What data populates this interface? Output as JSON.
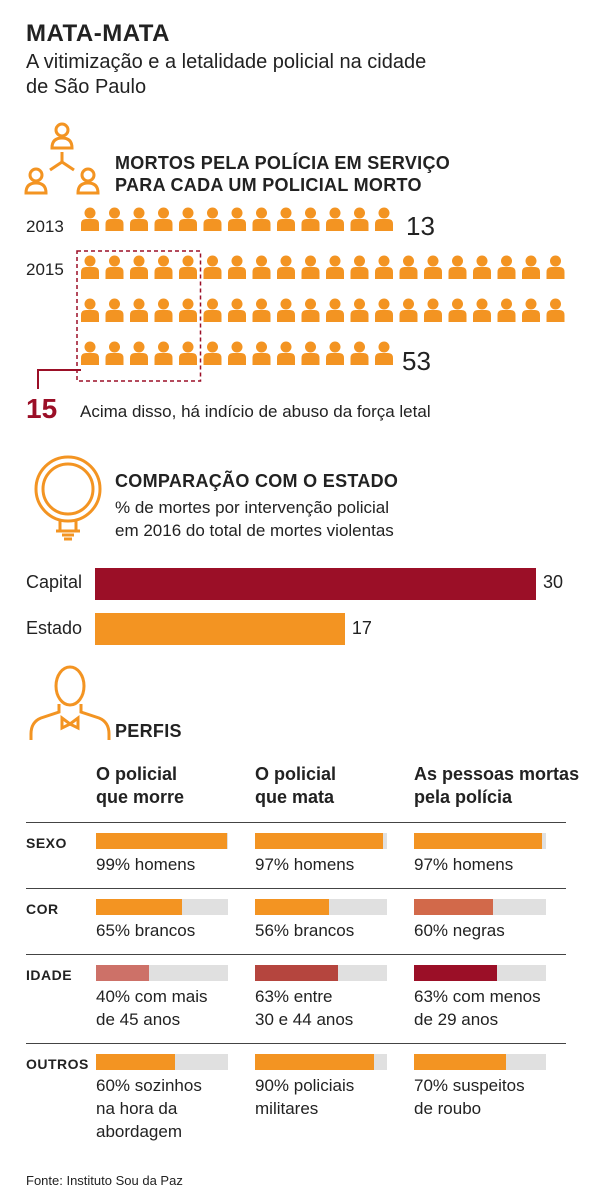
{
  "header": {
    "title": "MATA-MATA",
    "subtitle": "A vitimização e a letalidade policial na cidade de São Paulo"
  },
  "colors": {
    "orange": "#f39422",
    "darkred": "#9b0f27",
    "midred": "#b5453e",
    "lightred": "#cd7168",
    "rust": "#d2694a",
    "grey": "#e0e0e0"
  },
  "section1": {
    "title_line1": "MORTOS PELA POLÍCIA EM SERVIÇO",
    "title_line2": "PARA CADA UM POLICIAL MORTO",
    "rows": [
      {
        "year": "2013",
        "count": 13,
        "count_label": "13"
      },
      {
        "year": "2015",
        "count": 53,
        "count_label": "53"
      }
    ],
    "threshold_value": "15",
    "threshold_text": "Acima disso, há indício de abuso da força letal"
  },
  "section2": {
    "title": "COMPARAÇÃO COM O ESTADO",
    "subtitle_line1": "% de mortes por intervenção policial",
    "subtitle_line2": "em 2016 do total de mortes violentas"
  },
  "section3": {
    "title": "PERFIS",
    "columns": [
      {
        "line1": "O policial",
        "line2": "que morre"
      },
      {
        "line1": "O policial",
        "line2": "que mata"
      },
      {
        "line1": "As pessoas mortas",
        "line2": "pela polícia"
      }
    ],
    "rows": [
      {
        "label": "SEXO",
        "cells": [
          {
            "pct": 99,
            "color": "#f39422",
            "line1": "99% homens",
            "line2": ""
          },
          {
            "pct": 97,
            "color": "#f39422",
            "line1": "97% homens",
            "line2": ""
          },
          {
            "pct": 97,
            "color": "#f39422",
            "line1": "97% homens",
            "line2": ""
          }
        ]
      },
      {
        "label": "COR",
        "cells": [
          {
            "pct": 65,
            "color": "#f39422",
            "line1": "65% brancos",
            "line2": ""
          },
          {
            "pct": 56,
            "color": "#f39422",
            "line1": "56% brancos",
            "line2": ""
          },
          {
            "pct": 60,
            "color": "#d2694a",
            "line1": "60% negras",
            "line2": ""
          }
        ]
      },
      {
        "label": "IDADE",
        "cells": [
          {
            "pct": 40,
            "color": "#cd7168",
            "line1": "40% com mais",
            "line2": "de 45 anos"
          },
          {
            "pct": 63,
            "color": "#b5453e",
            "line1": "63% entre",
            "line2": "30 e 44 anos"
          },
          {
            "pct": 63,
            "color": "#9b0f27",
            "line1": "63% com menos",
            "line2": "de 29 anos"
          }
        ]
      },
      {
        "label": "OUTROS",
        "cells": [
          {
            "pct": 60,
            "color": "#f39422",
            "line1": "60% sozinhos",
            "line2": "na hora da",
            "line3": "abordagem"
          },
          {
            "pct": 90,
            "color": "#f39422",
            "line1": "90% policiais",
            "line2": "militares",
            "line3": ""
          },
          {
            "pct": 70,
            "color": "#f39422",
            "line1": "70% suspeitos",
            "line2": "de roubo",
            "line3": ""
          }
        ]
      }
    ]
  },
  "footer": {
    "source": "Fonte: Instituto Sou da Paz"
  },
  "chart_data": {
    "type": "bar",
    "orientation": "horizontal",
    "categories": [
      "Capital",
      "Estado"
    ],
    "values": [
      30,
      17
    ],
    "colors": [
      "#9b0f27",
      "#f39422"
    ]
  }
}
